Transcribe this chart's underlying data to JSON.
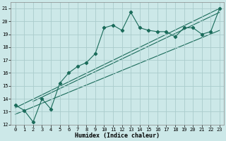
{
  "title": "",
  "xlabel": "Humidex (Indice chaleur)",
  "xlim": [
    -0.5,
    23.5
  ],
  "ylim": [
    12,
    21.5
  ],
  "yticks": [
    12,
    13,
    14,
    15,
    16,
    17,
    18,
    19,
    20,
    21
  ],
  "xticks": [
    0,
    1,
    2,
    3,
    4,
    5,
    6,
    7,
    8,
    9,
    10,
    11,
    12,
    13,
    14,
    15,
    16,
    17,
    18,
    19,
    20,
    21,
    22,
    23
  ],
  "bg_color": "#cce8e8",
  "grid_color": "#aacccc",
  "line_color": "#1a6b5a",
  "main_y": [
    13.5,
    13.1,
    12.2,
    14.0,
    13.2,
    15.2,
    16.0,
    16.5,
    16.8,
    17.5,
    19.5,
    19.7,
    19.3,
    20.7,
    19.5,
    19.3,
    19.2,
    19.2,
    18.8,
    19.5,
    19.5,
    19.0,
    19.2,
    21.0
  ],
  "reg1_start_x": 0,
  "reg1_start_y": 13.3,
  "reg1_end_x": 23,
  "reg1_end_y": 21.0,
  "reg2_start_x": 0,
  "reg2_start_y": 12.8,
  "reg2_end_x": 23,
  "reg2_end_y": 19.3,
  "reg3_start_x": 2,
  "reg3_start_y": 13.8,
  "reg3_end_x": 23,
  "reg3_end_y": 20.7
}
